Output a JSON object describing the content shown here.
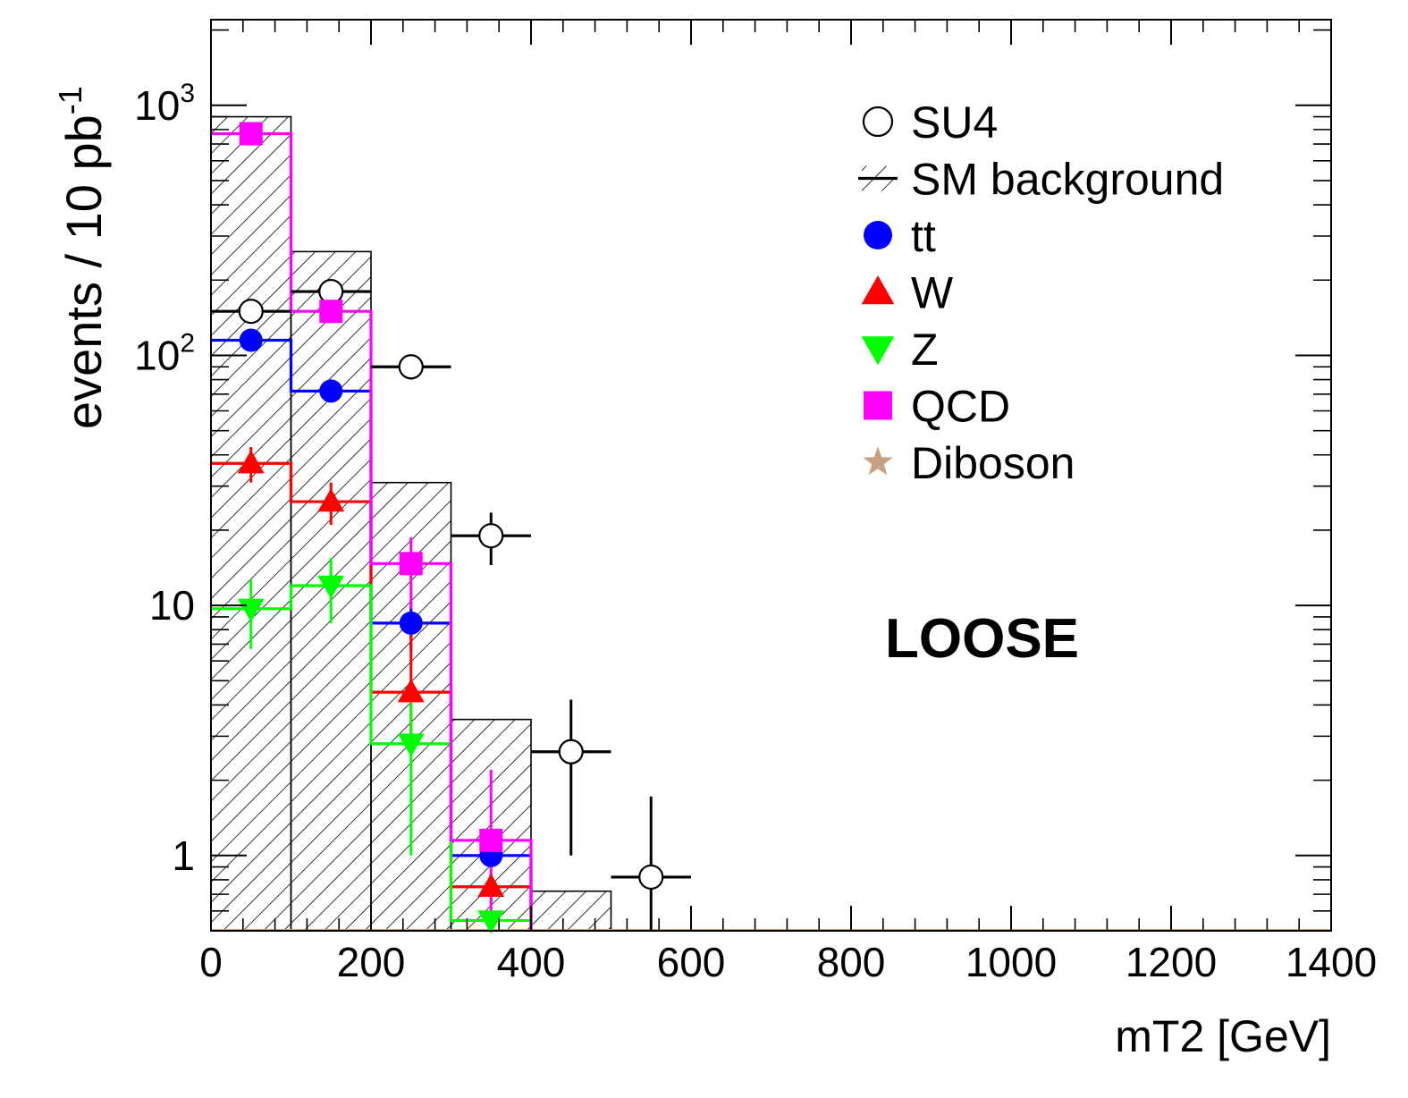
{
  "chart_data": {
    "type": "bar",
    "xlabel": "mT2 [GeV]",
    "ylabel": "events / 10 pb",
    "ylabel_superscript": "-1",
    "xlim": [
      0,
      1400
    ],
    "ylim": [
      0.5,
      2200
    ],
    "yscale": "log",
    "grid": false,
    "legend_position": "top-right",
    "annotation": "LOOSE",
    "x_ticks": [
      {
        "value": 0,
        "label": "0"
      },
      {
        "value": 200,
        "label": "200"
      },
      {
        "value": 400,
        "label": "400"
      },
      {
        "value": 600,
        "label": "600"
      },
      {
        "value": 800,
        "label": "800"
      },
      {
        "value": 1000,
        "label": "1000"
      },
      {
        "value": 1200,
        "label": "1200"
      },
      {
        "value": 1400,
        "label": "1400"
      }
    ],
    "y_ticks": [
      {
        "value": 1,
        "label": "1",
        "exp": ""
      },
      {
        "value": 10,
        "label": "10",
        "exp": ""
      },
      {
        "value": 100,
        "label": "10",
        "exp": "2"
      },
      {
        "value": 1000,
        "label": "10",
        "exp": "3"
      }
    ],
    "bin_edges": [
      0,
      100,
      200,
      300,
      400,
      500,
      600,
      700,
      800,
      900,
      1000,
      1100,
      1200,
      1300,
      1400
    ],
    "series": [
      {
        "name": "SM background",
        "style": "hatched-hist",
        "color": "#000000",
        "values": [
          900,
          260,
          31,
          3.5,
          0.72,
          0.5,
          0.5,
          0.5,
          0.5,
          0.5,
          0.5,
          0.5,
          0.5,
          0.5
        ]
      },
      {
        "name": "SU4",
        "style": "points",
        "marker": "open-circle",
        "color": "#000000",
        "values": [
          150,
          180,
          90,
          19,
          2.6,
          0.82
        ],
        "err_low": [
          15,
          15,
          10,
          4.5,
          1.6,
          0.42
        ],
        "err_high": [
          15,
          15,
          10,
          4.5,
          1.6,
          0.9
        ]
      },
      {
        "name": "tt",
        "style": "step-points",
        "marker": "filled-circle",
        "color": "#0000ff",
        "values": [
          115,
          72,
          8.5,
          1.0
        ],
        "err_low": [
          6,
          6,
          2,
          0.1
        ],
        "err_high": [
          6,
          6,
          2,
          0.1
        ]
      },
      {
        "name": "W",
        "style": "step-points",
        "marker": "triangle-up",
        "color": "#ff0000",
        "values": [
          37,
          26,
          4.5,
          0.75
        ],
        "err_low": [
          6,
          5,
          1.5,
          0.1
        ],
        "err_high": [
          6,
          5,
          4,
          0.1
        ]
      },
      {
        "name": "Z",
        "style": "step-points",
        "marker": "triangle-down",
        "color": "#00ff00",
        "values": [
          9.7,
          12,
          2.8,
          0.55
        ],
        "err_low": [
          3,
          3.5,
          1.8,
          0.05
        ],
        "err_high": [
          3,
          3.5,
          1.8,
          0.05
        ]
      },
      {
        "name": "QCD",
        "style": "step-points",
        "marker": "square",
        "color": "#ff00ff",
        "values": [
          770,
          150,
          14.7,
          1.15
        ],
        "err_low": [
          40,
          12,
          5,
          0.6
        ],
        "err_high": [
          40,
          12,
          4,
          1.05
        ]
      },
      {
        "name": "Diboson",
        "style": "points",
        "marker": "star",
        "color": "#c8a082",
        "values": []
      }
    ]
  }
}
